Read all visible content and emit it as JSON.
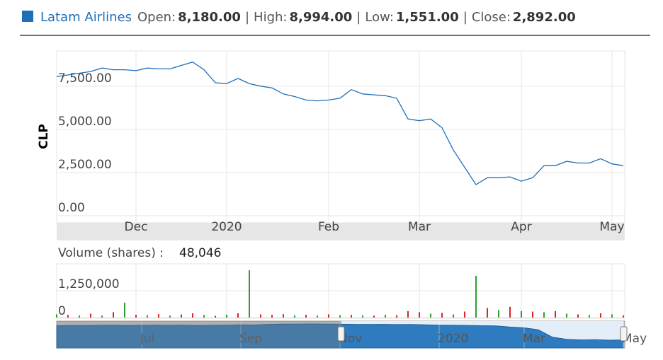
{
  "chart_data": {
    "type": "line",
    "title": "Latam Airlines",
    "legend_color": "#1f6fb8",
    "separator": "|",
    "stats": [
      {
        "label": "Open:",
        "value": "8,180.00"
      },
      {
        "label": "High:",
        "value": "8,994.00"
      },
      {
        "label": "Low:",
        "value": "1,551.00"
      },
      {
        "label": "Close:",
        "value": "2,892.00"
      }
    ],
    "ylabel": "CLP",
    "categories": [
      null,
      null,
      null,
      null,
      null,
      null,
      null,
      "Dec",
      null,
      null,
      null,
      null,
      null,
      null,
      null,
      "2020",
      null,
      null,
      null,
      null,
      null,
      null,
      null,
      null,
      "Feb",
      null,
      null,
      null,
      null,
      null,
      null,
      null,
      "Mar",
      null,
      null,
      null,
      null,
      null,
      null,
      null,
      null,
      "Apr",
      null,
      null,
      null,
      null,
      null,
      null,
      null,
      "May",
      null
    ],
    "series": [
      {
        "color": "#1f6fb8",
        "values": [
          8050,
          8150,
          8250,
          8350,
          8550,
          8450,
          8450,
          8400,
          8550,
          8500,
          8500,
          8700,
          8900,
          8450,
          7700,
          7650,
          7950,
          7650,
          7500,
          7400,
          7050,
          6900,
          6700,
          6650,
          6700,
          6800,
          7300,
          7050,
          7000,
          6950,
          6800,
          5600,
          5500,
          5600,
          5100,
          3800,
          2800,
          1800,
          2200,
          2200,
          2250,
          2000,
          2200,
          2900,
          2900,
          3150,
          3050,
          3050,
          3300,
          3000,
          2900
        ]
      }
    ],
    "ylim": [
      0,
      9500
    ],
    "yticks": [
      {
        "value": 0,
        "label": "0.00"
      },
      {
        "value": 2500,
        "label": "2,500.00"
      },
      {
        "value": 5000,
        "label": "5,000.00"
      },
      {
        "value": 7500,
        "label": "7,500.00"
      }
    ],
    "grid": true,
    "volume": {
      "label": "Volume (shares) :",
      "readout": "48,046",
      "values": [
        150000,
        120000,
        100000,
        180000,
        90000,
        250000,
        690000,
        130000,
        110000,
        160000,
        90000,
        140000,
        200000,
        120000,
        80000,
        130000,
        200000,
        2200000,
        150000,
        120000,
        160000,
        100000,
        130000,
        90000,
        150000,
        110000,
        120000,
        100000,
        90000,
        130000,
        110000,
        300000,
        250000,
        180000,
        220000,
        150000,
        280000,
        1940000,
        450000,
        350000,
        500000,
        300000,
        280000,
        250000,
        300000,
        180000,
        150000,
        120000,
        200000,
        150000,
        100000
      ],
      "colors": [
        "#2ca02c",
        "#d62728",
        "#2ca02c",
        "#d62728",
        "#2ca02c",
        "#d62728",
        "#2ca02c",
        "#d62728",
        "#2ca02c",
        "#d62728",
        "#2ca02c",
        "#d62728",
        "#d62728",
        "#2ca02c",
        "#d62728",
        "#2ca02c",
        "#d62728",
        "#2ca02c",
        "#d62728",
        "#d62728",
        "#d62728",
        "#2ca02c",
        "#d62728",
        "#2ca02c",
        "#d62728",
        "#2ca02c",
        "#d62728",
        "#2ca02c",
        "#d62728",
        "#2ca02c",
        "#d62728",
        "#d62728",
        "#d62728",
        "#2ca02c",
        "#d62728",
        "#2ca02c",
        "#d62728",
        "#2ca02c",
        "#d62728",
        "#2ca02c",
        "#d62728",
        "#2ca02c",
        "#d62728",
        "#2ca02c",
        "#d62728",
        "#2ca02c",
        "#d62728",
        "#2ca02c",
        "#d62728",
        "#2ca02c",
        "#d62728"
      ],
      "ylim": [
        0,
        2500000
      ],
      "yticks": [
        0,
        {
          "value": 1250000,
          "label": "1,250,000"
        }
      ]
    },
    "navigator": {
      "color": "#2f7bbf",
      "categories": [
        null,
        null,
        null,
        null,
        null,
        null,
        "Jul",
        null,
        null,
        null,
        null,
        null,
        null,
        "Sep",
        null,
        null,
        null,
        null,
        null,
        null,
        "Nov",
        null,
        null,
        null,
        null,
        null,
        null,
        "2020",
        null,
        null,
        null,
        null,
        null,
        "Mar",
        null,
        null,
        null,
        null,
        null,
        null,
        "May"
      ],
      "values": [
        8300,
        8400,
        8350,
        8450,
        8500,
        8400,
        8450,
        8500,
        8450,
        8500,
        8400,
        8450,
        8500,
        8600,
        8550,
        8800,
        8900,
        8900,
        8950,
        8900,
        8850,
        8800,
        8750,
        8800,
        8700,
        8750,
        8600,
        8500,
        8450,
        8400,
        8300,
        8200,
        7800,
        7500,
        6800,
        4000,
        3200,
        3000,
        3100,
        2900,
        3000
      ],
      "ylim": [
        0,
        10000
      ]
    }
  }
}
